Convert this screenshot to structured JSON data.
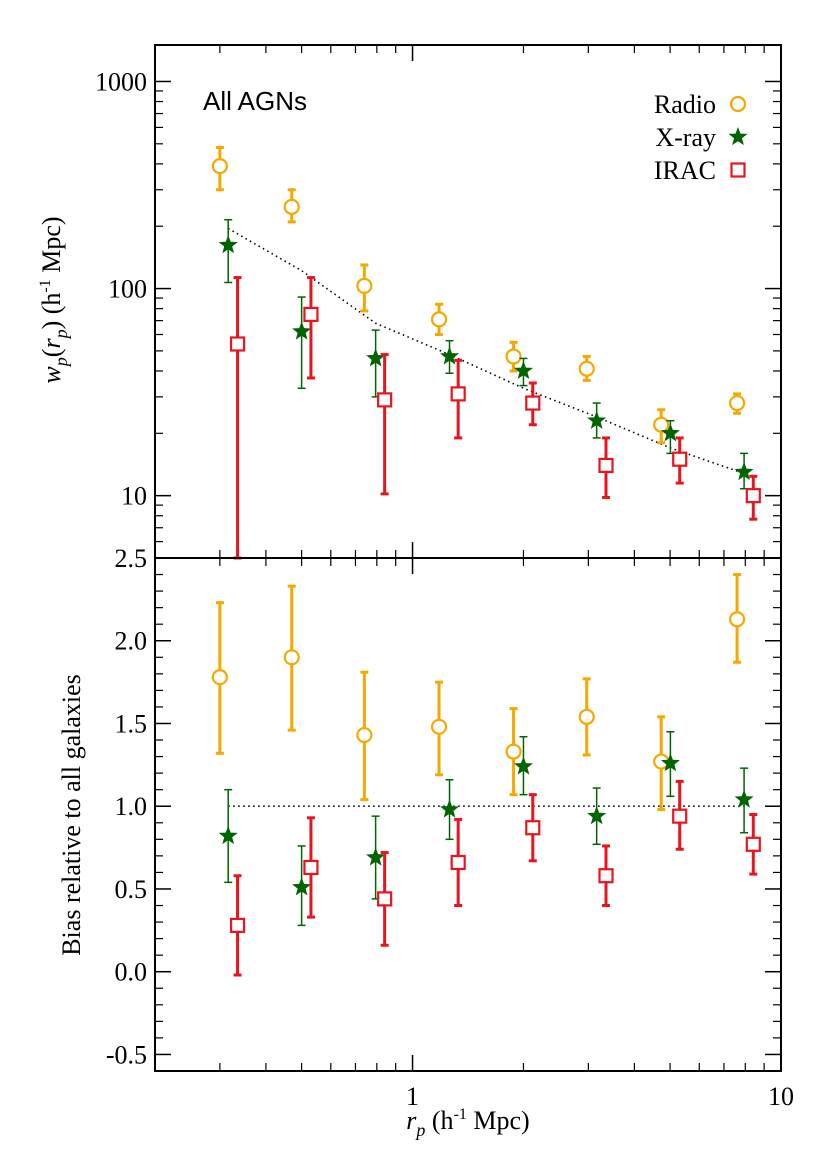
{
  "chart_data": [
    {
      "type": "scatter",
      "panel": "top",
      "annotation": "All AGNs",
      "ylabel_parts": {
        "w": "w",
        "p1": "p",
        "paren_open": "(",
        "r": "r",
        "p2": "p",
        "paren_close": ")",
        "unit": "(h",
        "exp": "-1",
        "mpc": " Mpc)"
      },
      "yscale": "log",
      "xscale": "log",
      "xlim": [
        0.2,
        10
      ],
      "ylim": [
        5,
        1500
      ],
      "yticks": [
        {
          "value": 10,
          "label": "10"
        },
        {
          "value": 100,
          "label": "100"
        },
        {
          "value": 1000,
          "label": "1000"
        }
      ],
      "legend": {
        "placement": "top-right",
        "entries": [
          {
            "label": "Radio",
            "marker": "circle",
            "color": "#F5A800"
          },
          {
            "label": "X-ray",
            "marker": "star",
            "color": "#006400"
          },
          {
            "label": "IRAC",
            "marker": "square",
            "color": "#E8141E"
          }
        ]
      },
      "reference_line": {
        "style": "dotted",
        "x": [
          0.316,
          0.5,
          0.794,
          1.26,
          2.0,
          3.16,
          5.01,
          7.94
        ],
        "y": [
          195,
          122,
          68,
          48,
          33,
          24,
          17,
          12.8
        ]
      },
      "series": [
        {
          "name": "Radio",
          "x": [
            0.3,
            0.47,
            0.74,
            1.18,
            1.88,
            2.97,
            4.73,
            7.6
          ],
          "y": [
            390,
            248,
            103,
            71,
            47,
            41,
            22,
            28
          ],
          "err_low": [
            300,
            210,
            78,
            60,
            40,
            36,
            18,
            25
          ],
          "err_high": [
            480,
            300,
            130,
            84,
            55,
            47,
            26,
            31
          ]
        },
        {
          "name": "X-ray",
          "x": [
            0.316,
            0.5,
            0.794,
            1.26,
            2.0,
            3.16,
            5.01,
            7.94
          ],
          "y": [
            162,
            62,
            46,
            47,
            40,
            23,
            20,
            13
          ],
          "err_low": [
            107,
            33,
            30,
            39,
            34,
            19,
            16,
            10.8
          ],
          "err_high": [
            215,
            91,
            63,
            56,
            46,
            28,
            23,
            16
          ]
        },
        {
          "name": "IRAC",
          "x": [
            0.335,
            0.53,
            0.84,
            1.33,
            2.12,
            3.35,
            5.31,
            8.41
          ],
          "y": [
            54,
            75,
            29,
            31,
            28,
            14,
            15,
            10
          ],
          "err_low": [
            5,
            37,
            10.2,
            19,
            22,
            9.8,
            11.5,
            7.7
          ],
          "err_high": [
            113,
            113,
            48,
            45,
            35,
            19,
            19,
            12.4
          ]
        }
      ]
    },
    {
      "type": "scatter",
      "panel": "bottom",
      "ylabel": "Bias relative to all galaxies",
      "xlabel_parts": {
        "r": "r",
        "p": "p",
        "unit": " (h",
        "exp": "-1",
        "mpc": " Mpc)"
      },
      "xscale": "log",
      "xlim": [
        0.2,
        10
      ],
      "ylim": [
        -0.6,
        2.5
      ],
      "xticks": [
        {
          "value": 1,
          "label": "1"
        },
        {
          "value": 10,
          "label": "10"
        }
      ],
      "yticks": [
        {
          "value": -0.5,
          "label": "-0.5"
        },
        {
          "value": 0.0,
          "label": "0.0"
        },
        {
          "value": 0.5,
          "label": "0.5"
        },
        {
          "value": 1.0,
          "label": "1.0"
        },
        {
          "value": 1.5,
          "label": "1.5"
        },
        {
          "value": 2.0,
          "label": "2.0"
        },
        {
          "value": 2.5,
          "label": "2.5"
        }
      ],
      "reference_line": {
        "style": "dotted",
        "x": [
          0.316,
          7.94
        ],
        "y": [
          1.0,
          1.0
        ]
      },
      "series": [
        {
          "name": "Radio",
          "x": [
            0.3,
            0.47,
            0.74,
            1.18,
            1.88,
            2.97,
            4.73,
            7.6
          ],
          "y": [
            1.78,
            1.9,
            1.43,
            1.48,
            1.33,
            1.54,
            1.27,
            2.13
          ],
          "err_low": [
            1.32,
            1.46,
            1.04,
            1.19,
            1.07,
            1.31,
            0.98,
            1.87
          ],
          "err_high": [
            2.23,
            2.33,
            1.81,
            1.75,
            1.59,
            1.77,
            1.54,
            2.4
          ]
        },
        {
          "name": "X-ray",
          "x": [
            0.316,
            0.5,
            0.794,
            1.26,
            2.0,
            3.16,
            5.01,
            7.94
          ],
          "y": [
            0.82,
            0.51,
            0.69,
            0.98,
            1.24,
            0.94,
            1.26,
            1.04
          ],
          "err_low": [
            0.54,
            0.28,
            0.44,
            0.8,
            1.07,
            0.77,
            1.06,
            0.84
          ],
          "err_high": [
            1.1,
            0.76,
            0.94,
            1.16,
            1.42,
            1.11,
            1.45,
            1.23
          ]
        },
        {
          "name": "IRAC",
          "x": [
            0.335,
            0.53,
            0.84,
            1.33,
            2.12,
            3.35,
            5.31,
            8.41
          ],
          "y": [
            0.28,
            0.63,
            0.44,
            0.66,
            0.87,
            0.58,
            0.94,
            0.77
          ],
          "err_low": [
            -0.02,
            0.33,
            0.16,
            0.4,
            0.67,
            0.4,
            0.74,
            0.59
          ],
          "err_high": [
            0.58,
            0.93,
            0.72,
            0.92,
            1.07,
            0.76,
            1.15,
            0.95
          ]
        }
      ]
    }
  ]
}
